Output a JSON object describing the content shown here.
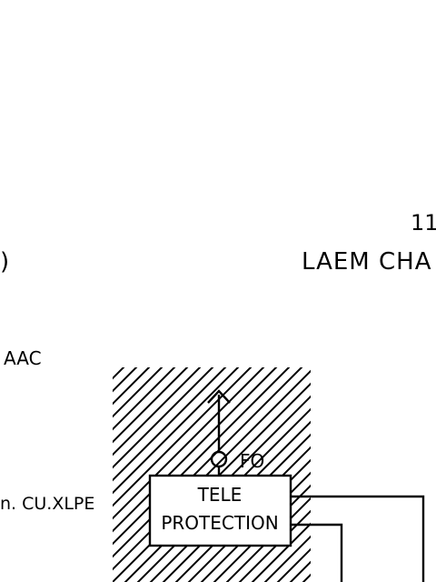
{
  "labels": {
    "top_right_number": "11",
    "left_paren": ")",
    "station_name": "LAEM CHA",
    "conductor_left": "AAC",
    "cable_left": "n. CU.XLPE",
    "fo_label": "FO",
    "tele_line1": "TELE",
    "tele_line2": "PROTECTION"
  },
  "colors": {
    "ink": "#000000",
    "background": "#ffffff"
  }
}
